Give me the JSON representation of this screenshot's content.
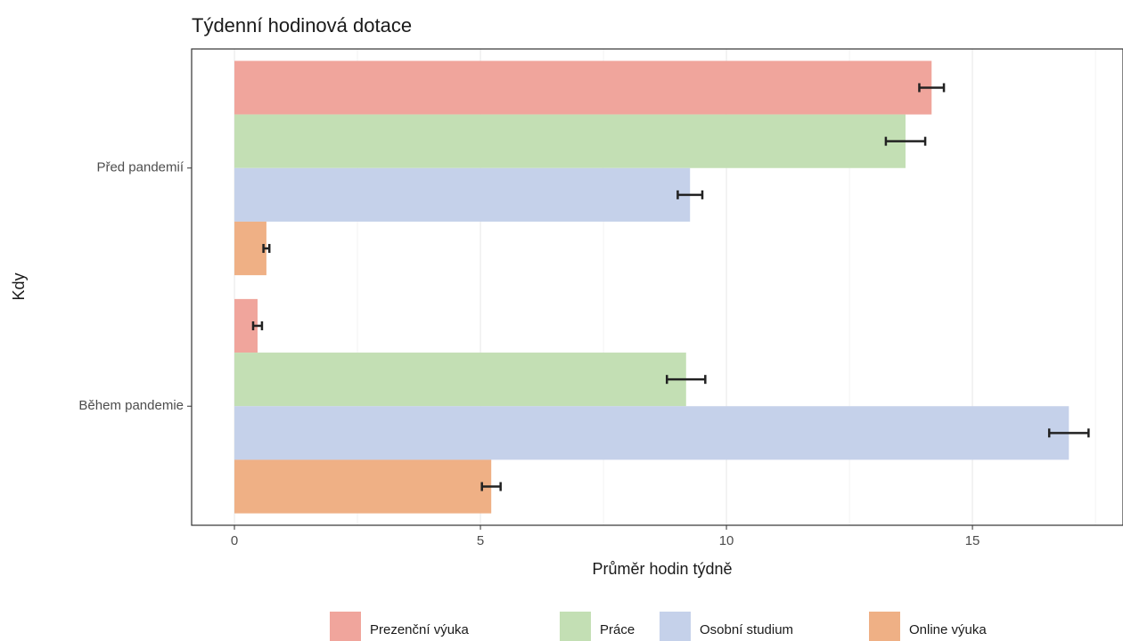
{
  "chart_data": {
    "type": "hbar",
    "title": "Týdenní hodinová dotace",
    "x_label": "Průměr hodin týdně",
    "y_label": "Kdy",
    "categories": [
      "Před pandemií",
      "Během pandemie"
    ],
    "series": [
      {
        "name": "Prezenční výuka",
        "color": "#f0a59c",
        "values": [
          14.17,
          0.47
        ],
        "errors": [
          0.25,
          0.09
        ]
      },
      {
        "name": "Práce",
        "color": "#c3dfb4",
        "values": [
          13.64,
          9.18
        ],
        "errors": [
          0.4,
          0.39
        ]
      },
      {
        "name": "Osobní studium",
        "color": "#c5d1ea",
        "values": [
          9.26,
          16.96
        ],
        "errors": [
          0.25,
          0.4
        ]
      },
      {
        "name": "Online výuka",
        "color": "#efb085",
        "values": [
          0.65,
          5.22
        ],
        "errors": [
          0.06,
          0.19
        ]
      }
    ],
    "xlim": [
      -0.87,
      18.06
    ],
    "xticks": [
      0,
      5,
      10,
      15
    ],
    "grid": true,
    "legend": "bottom"
  }
}
